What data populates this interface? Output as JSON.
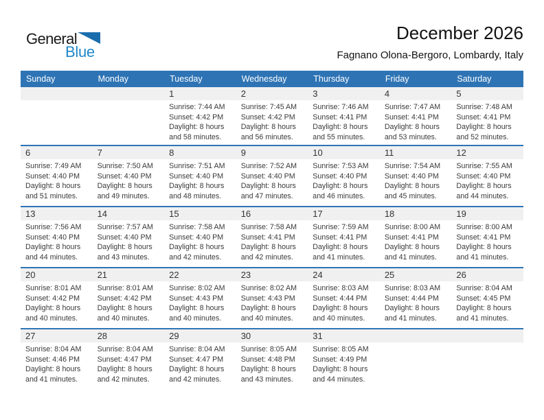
{
  "logo": {
    "part1": "General",
    "part2": "Blue"
  },
  "page": {
    "title": "December 2026",
    "subtitle": "Fagnano Olona-Bergoro, Lombardy, Italy"
  },
  "colors": {
    "header_blue": "#2e74b5",
    "week_separator_blue": "#2e74b5",
    "day_band_gray": "#f0f0f0",
    "logo_text_blue": "#1e87c9",
    "logo_triangle_blue": "#1a6dad"
  },
  "calendar": {
    "weekdays": [
      "Sunday",
      "Monday",
      "Tuesday",
      "Wednesday",
      "Thursday",
      "Friday",
      "Saturday"
    ],
    "weeks": [
      [
        null,
        null,
        {
          "day": "1",
          "sunrise": "Sunrise: 7:44 AM",
          "sunset": "Sunset: 4:42 PM",
          "daylight": "Daylight: 8 hours and 58 minutes."
        },
        {
          "day": "2",
          "sunrise": "Sunrise: 7:45 AM",
          "sunset": "Sunset: 4:42 PM",
          "daylight": "Daylight: 8 hours and 56 minutes."
        },
        {
          "day": "3",
          "sunrise": "Sunrise: 7:46 AM",
          "sunset": "Sunset: 4:41 PM",
          "daylight": "Daylight: 8 hours and 55 minutes."
        },
        {
          "day": "4",
          "sunrise": "Sunrise: 7:47 AM",
          "sunset": "Sunset: 4:41 PM",
          "daylight": "Daylight: 8 hours and 53 minutes."
        },
        {
          "day": "5",
          "sunrise": "Sunrise: 7:48 AM",
          "sunset": "Sunset: 4:41 PM",
          "daylight": "Daylight: 8 hours and 52 minutes."
        }
      ],
      [
        {
          "day": "6",
          "sunrise": "Sunrise: 7:49 AM",
          "sunset": "Sunset: 4:40 PM",
          "daylight": "Daylight: 8 hours and 51 minutes."
        },
        {
          "day": "7",
          "sunrise": "Sunrise: 7:50 AM",
          "sunset": "Sunset: 4:40 PM",
          "daylight": "Daylight: 8 hours and 49 minutes."
        },
        {
          "day": "8",
          "sunrise": "Sunrise: 7:51 AM",
          "sunset": "Sunset: 4:40 PM",
          "daylight": "Daylight: 8 hours and 48 minutes."
        },
        {
          "day": "9",
          "sunrise": "Sunrise: 7:52 AM",
          "sunset": "Sunset: 4:40 PM",
          "daylight": "Daylight: 8 hours and 47 minutes."
        },
        {
          "day": "10",
          "sunrise": "Sunrise: 7:53 AM",
          "sunset": "Sunset: 4:40 PM",
          "daylight": "Daylight: 8 hours and 46 minutes."
        },
        {
          "day": "11",
          "sunrise": "Sunrise: 7:54 AM",
          "sunset": "Sunset: 4:40 PM",
          "daylight": "Daylight: 8 hours and 45 minutes."
        },
        {
          "day": "12",
          "sunrise": "Sunrise: 7:55 AM",
          "sunset": "Sunset: 4:40 PM",
          "daylight": "Daylight: 8 hours and 44 minutes."
        }
      ],
      [
        {
          "day": "13",
          "sunrise": "Sunrise: 7:56 AM",
          "sunset": "Sunset: 4:40 PM",
          "daylight": "Daylight: 8 hours and 44 minutes."
        },
        {
          "day": "14",
          "sunrise": "Sunrise: 7:57 AM",
          "sunset": "Sunset: 4:40 PM",
          "daylight": "Daylight: 8 hours and 43 minutes."
        },
        {
          "day": "15",
          "sunrise": "Sunrise: 7:58 AM",
          "sunset": "Sunset: 4:40 PM",
          "daylight": "Daylight: 8 hours and 42 minutes."
        },
        {
          "day": "16",
          "sunrise": "Sunrise: 7:58 AM",
          "sunset": "Sunset: 4:41 PM",
          "daylight": "Daylight: 8 hours and 42 minutes."
        },
        {
          "day": "17",
          "sunrise": "Sunrise: 7:59 AM",
          "sunset": "Sunset: 4:41 PM",
          "daylight": "Daylight: 8 hours and 41 minutes."
        },
        {
          "day": "18",
          "sunrise": "Sunrise: 8:00 AM",
          "sunset": "Sunset: 4:41 PM",
          "daylight": "Daylight: 8 hours and 41 minutes."
        },
        {
          "day": "19",
          "sunrise": "Sunrise: 8:00 AM",
          "sunset": "Sunset: 4:41 PM",
          "daylight": "Daylight: 8 hours and 41 minutes."
        }
      ],
      [
        {
          "day": "20",
          "sunrise": "Sunrise: 8:01 AM",
          "sunset": "Sunset: 4:42 PM",
          "daylight": "Daylight: 8 hours and 40 minutes."
        },
        {
          "day": "21",
          "sunrise": "Sunrise: 8:01 AM",
          "sunset": "Sunset: 4:42 PM",
          "daylight": "Daylight: 8 hours and 40 minutes."
        },
        {
          "day": "22",
          "sunrise": "Sunrise: 8:02 AM",
          "sunset": "Sunset: 4:43 PM",
          "daylight": "Daylight: 8 hours and 40 minutes."
        },
        {
          "day": "23",
          "sunrise": "Sunrise: 8:02 AM",
          "sunset": "Sunset: 4:43 PM",
          "daylight": "Daylight: 8 hours and 40 minutes."
        },
        {
          "day": "24",
          "sunrise": "Sunrise: 8:03 AM",
          "sunset": "Sunset: 4:44 PM",
          "daylight": "Daylight: 8 hours and 40 minutes."
        },
        {
          "day": "25",
          "sunrise": "Sunrise: 8:03 AM",
          "sunset": "Sunset: 4:44 PM",
          "daylight": "Daylight: 8 hours and 41 minutes."
        },
        {
          "day": "26",
          "sunrise": "Sunrise: 8:04 AM",
          "sunset": "Sunset: 4:45 PM",
          "daylight": "Daylight: 8 hours and 41 minutes."
        }
      ],
      [
        {
          "day": "27",
          "sunrise": "Sunrise: 8:04 AM",
          "sunset": "Sunset: 4:46 PM",
          "daylight": "Daylight: 8 hours and 41 minutes."
        },
        {
          "day": "28",
          "sunrise": "Sunrise: 8:04 AM",
          "sunset": "Sunset: 4:47 PM",
          "daylight": "Daylight: 8 hours and 42 minutes."
        },
        {
          "day": "29",
          "sunrise": "Sunrise: 8:04 AM",
          "sunset": "Sunset: 4:47 PM",
          "daylight": "Daylight: 8 hours and 42 minutes."
        },
        {
          "day": "30",
          "sunrise": "Sunrise: 8:05 AM",
          "sunset": "Sunset: 4:48 PM",
          "daylight": "Daylight: 8 hours and 43 minutes."
        },
        {
          "day": "31",
          "sunrise": "Sunrise: 8:05 AM",
          "sunset": "Sunset: 4:49 PM",
          "daylight": "Daylight: 8 hours and 44 minutes."
        },
        null,
        null
      ]
    ]
  }
}
